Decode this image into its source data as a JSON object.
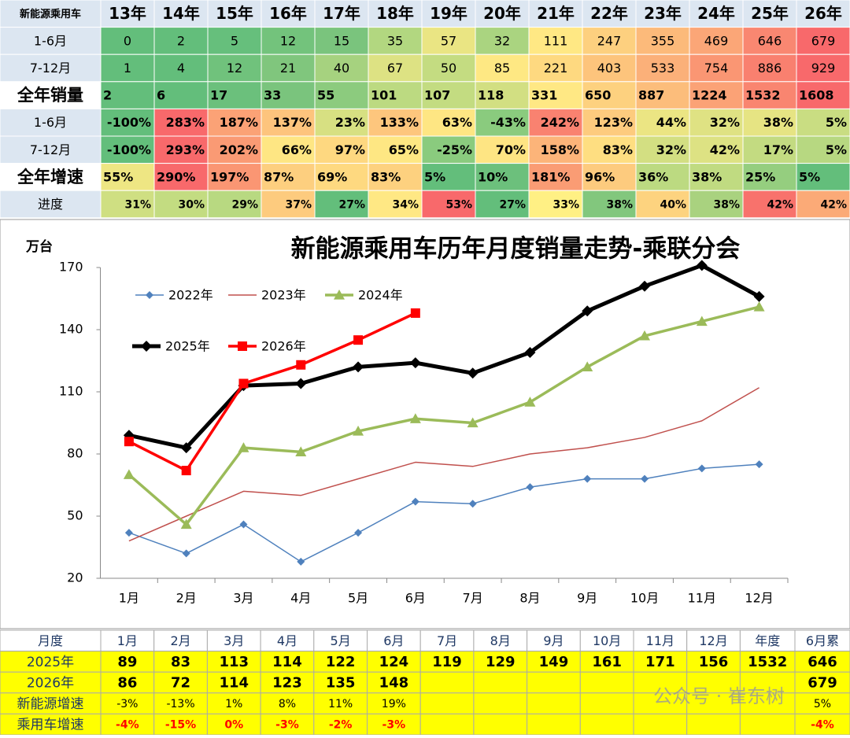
{
  "top_table": {
    "header": [
      "新能源乘用车",
      "13年",
      "14年",
      "15年",
      "16年",
      "17年",
      "18年",
      "19年",
      "20年",
      "21年",
      "22年",
      "23年",
      "24年",
      "25年",
      "26年"
    ],
    "rows": [
      {
        "label": "1-6月",
        "cells": [
          "0",
          "2",
          "5",
          "12",
          "15",
          "35",
          "57",
          "32",
          "111",
          "247",
          "355",
          "469",
          "646",
          "679"
        ],
        "colors": [
          "#63be7b",
          "#63be7b",
          "#66bf7c",
          "#73c37c",
          "#7ac47d",
          "#b2d780",
          "#eae583",
          "#aad480",
          "#ffe884",
          "#fdd07f",
          "#fcba7a",
          "#fba677",
          "#f98771",
          "#f8696b"
        ]
      },
      {
        "label": "7-12月",
        "cells": [
          "1",
          "4",
          "12",
          "21",
          "40",
          "67",
          "50",
          "85",
          "221",
          "403",
          "533",
          "754",
          "886",
          "929"
        ],
        "colors": [
          "#63be7b",
          "#63be7b",
          "#70c27c",
          "#80c67d",
          "#a6d27f",
          "#dde283",
          "#c4dc81",
          "#fee883",
          "#fed980",
          "#fdc47c",
          "#fbb079",
          "#fa9673",
          "#f9806f",
          "#f8696b"
        ]
      },
      {
        "label": "全年销量",
        "cells": [
          "2",
          "6",
          "17",
          "33",
          "55",
          "101",
          "107",
          "118",
          "331",
          "650",
          "887",
          "1224",
          "1532",
          "1608"
        ],
        "colors": [
          "#63be7b",
          "#63be7b",
          "#6bc07c",
          "#7ac47d",
          "#8ccb7e",
          "#bcda81",
          "#c3dc81",
          "#d2df82",
          "#ffe884",
          "#fdd17f",
          "#fcbd7b",
          "#fba276",
          "#f98570",
          "#f8696b"
        ]
      },
      {
        "label": "1-6月",
        "cells": [
          "-100%",
          "283%",
          "187%",
          "137%",
          "23%",
          "133%",
          "63%",
          "-43%",
          "242%",
          "123%",
          "44%",
          "32%",
          "38%",
          "5%"
        ],
        "colors": [
          "#63be7b",
          "#f8696b",
          "#fba276",
          "#fdc47d",
          "#d7e082",
          "#fdc67d",
          "#fee683",
          "#8acb7e",
          "#f98270",
          "#fdcb7e",
          "#ebe583",
          "#dfe283",
          "#e6e483",
          "#c9dd82"
        ]
      },
      {
        "label": "7-12月",
        "cells": [
          "-100%",
          "293%",
          "202%",
          "66%",
          "97%",
          "65%",
          "-25%",
          "70%",
          "158%",
          "83%",
          "32%",
          "42%",
          "17%",
          "5%"
        ],
        "colors": [
          "#63be7b",
          "#f8696b",
          "#fa9a74",
          "#fee683",
          "#fed880",
          "#fee783",
          "#8acb7e",
          "#fee583",
          "#fcb479",
          "#fede81",
          "#d3df82",
          "#dde283",
          "#c3db81",
          "#b7d881"
        ]
      },
      {
        "label": "全年增速",
        "cells": [
          "55%",
          "290%",
          "197%",
          "87%",
          "69%",
          "83%",
          "5%",
          "10%",
          "181%",
          "96%",
          "36%",
          "38%",
          "25%",
          "5%"
        ],
        "colors": [
          "#eee683",
          "#f8696b",
          "#fa9673",
          "#fdcf7f",
          "#fed980",
          "#fdd17f",
          "#63be7b",
          "#6cc07c",
          "#fa9c74",
          "#fdcb7e",
          "#bcda81",
          "#c0db81",
          "#95ce7f",
          "#63be7b"
        ]
      },
      {
        "label": "进度",
        "cells": [
          "31%",
          "30%",
          "29%",
          "37%",
          "27%",
          "34%",
          "53%",
          "27%",
          "33%",
          "38%",
          "40%",
          "38%",
          "42%",
          "42%"
        ],
        "colors": [
          "#cfdf82",
          "#c3dc81",
          "#b8d981",
          "#fdcb7e",
          "#63be7b",
          "#ffe884",
          "#f8696b",
          "#63be7b",
          "#fff084",
          "#82c77d",
          "#fdd37f",
          "#a9d27f",
          "#f8726c",
          "#fbaa77"
        ]
      }
    ]
  },
  "chart_data": {
    "type": "line",
    "title": "新能源乘用车历年月度销量走势-乘联分会",
    "y_label": "万台",
    "categories": [
      "1月",
      "2月",
      "3月",
      "4月",
      "5月",
      "6月",
      "7月",
      "8月",
      "9月",
      "10月",
      "11月",
      "12月"
    ],
    "ylim": [
      20,
      170
    ],
    "yticks": [
      20,
      50,
      80,
      110,
      140,
      170
    ],
    "series": [
      {
        "name": "2022年",
        "color": "#4f81bd",
        "marker": "diamond",
        "width": 1.5,
        "values": [
          42,
          32,
          46,
          28,
          42,
          57,
          56,
          64,
          68,
          68,
          73,
          75
        ]
      },
      {
        "name": "2023年",
        "color": "#c0504d",
        "marker": "none",
        "width": 1.5,
        "values": [
          38,
          50,
          62,
          60,
          68,
          76,
          74,
          80,
          83,
          88,
          96,
          112
        ]
      },
      {
        "name": "2024年",
        "color": "#9bbb59",
        "marker": "triangle",
        "width": 3.5,
        "values": [
          70,
          46,
          83,
          81,
          91,
          97,
          95,
          105,
          122,
          137,
          144,
          151
        ]
      },
      {
        "name": "2025年",
        "color": "#000000",
        "marker": "diamond",
        "width": 5,
        "values": [
          89,
          83,
          113,
          114,
          122,
          124,
          119,
          129,
          149,
          161,
          171,
          156
        ]
      },
      {
        "name": "2026年",
        "color": "#ff0000",
        "marker": "square",
        "width": 3.5,
        "values": [
          86,
          72,
          114,
          123,
          135,
          148,
          null,
          null,
          null,
          null,
          null,
          null
        ]
      }
    ]
  },
  "bottom_table": {
    "header": [
      "月度",
      "1月",
      "2月",
      "3月",
      "4月",
      "5月",
      "6月",
      "7月",
      "8月",
      "9月",
      "10月",
      "11月",
      "12月",
      "年度",
      "6月累"
    ],
    "rows": [
      {
        "label": "2025年",
        "cells": [
          "89",
          "83",
          "113",
          "114",
          "122",
          "124",
          "119",
          "129",
          "149",
          "161",
          "171",
          "156",
          "1532",
          "646"
        ]
      },
      {
        "label": "2026年",
        "cells": [
          "86",
          "72",
          "114",
          "123",
          "135",
          "148",
          null,
          null,
          null,
          null,
          null,
          null,
          null,
          "679"
        ]
      },
      {
        "label": "新能源增速",
        "cells": [
          "-3%",
          "-13%",
          "1%",
          "8%",
          "11%",
          "19%",
          null,
          null,
          null,
          null,
          null,
          null,
          null,
          "5%"
        ]
      },
      {
        "label": "乘用车增速",
        "cells": [
          "-4%",
          "-15%",
          "0%",
          "-3%",
          "-2%",
          "-3%",
          null,
          null,
          null,
          null,
          null,
          null,
          null,
          "-4%"
        ]
      }
    ]
  },
  "watermark": "公众号 · 崔东树"
}
